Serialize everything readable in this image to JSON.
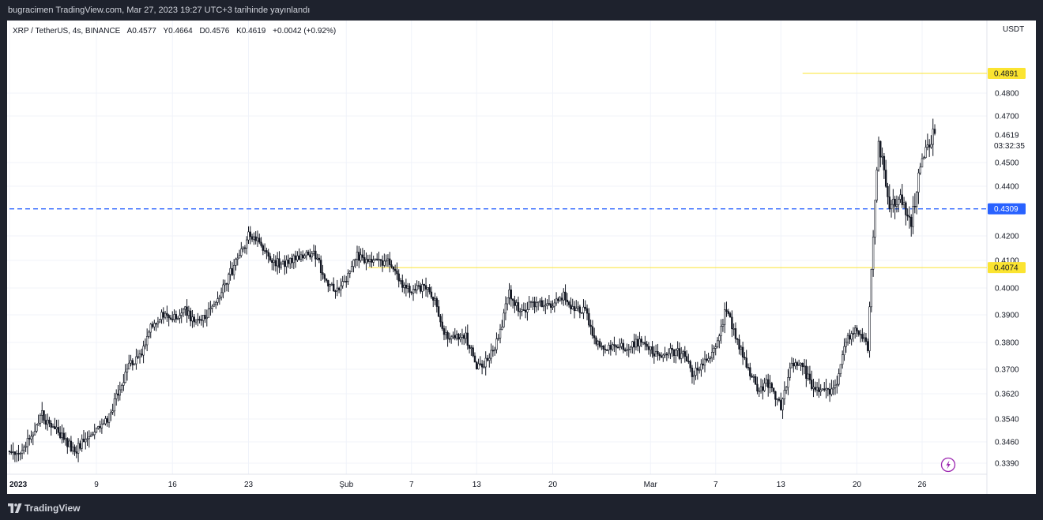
{
  "header": {
    "published_line": "bugracimen TradingView.com, Mar 27, 2023 19:27 UTC+3 tarihinde yayınlandı"
  },
  "legend": {
    "symbol_line": "XRP / TetherUS, 4s, BINANCE",
    "open": "A0.4577",
    "high": "Y0.4664",
    "low": "D0.4576",
    "close": "K0.4619",
    "change": "+0.0042 (+0.92%)"
  },
  "price_axis": {
    "currency": "USDT",
    "countdown": "03:32:35"
  },
  "footer": {
    "brand": "TradingView"
  },
  "chart_data": {
    "type": "candlestick",
    "symbol": "XRP / TetherUS",
    "timeframe": "4s",
    "exchange": "BINANCE",
    "last_price": "0.4619",
    "y_ticks": [
      0.339,
      0.346,
      0.354,
      0.362,
      0.37,
      0.38,
      0.39,
      0.4,
      0.41,
      0.42,
      0.44,
      0.45,
      0.47,
      0.48
    ],
    "y_tick_labels": [
      "0.3390",
      "0.3460",
      "0.3540",
      "0.3620",
      "0.3700",
      "0.3800",
      "0.3900",
      "0.4000",
      "0.4100",
      "0.4200",
      "0.4400",
      "0.4500",
      "0.4700",
      "0.4800"
    ],
    "x_ticks": [
      {
        "label": "2023",
        "date": "2023-01-01"
      },
      {
        "label": "9",
        "date": "2023-01-09"
      },
      {
        "label": "16",
        "date": "2023-01-16"
      },
      {
        "label": "23",
        "date": "2023-01-23"
      },
      {
        "label": "Şub",
        "date": "2023-02-01"
      },
      {
        "label": "7",
        "date": "2023-02-07"
      },
      {
        "label": "13",
        "date": "2023-02-13"
      },
      {
        "label": "20",
        "date": "2023-02-20"
      },
      {
        "label": "Mar",
        "date": "2023-03-01"
      },
      {
        "label": "7",
        "date": "2023-03-07"
      },
      {
        "label": "13",
        "date": "2023-03-13"
      },
      {
        "label": "20",
        "date": "2023-03-20"
      },
      {
        "label": "26",
        "date": "2023-03-26"
      }
    ],
    "horizontal_lines": [
      {
        "price": 0.4891,
        "label": "0.4891",
        "color": "#fbe431",
        "style": "solid",
        "from_date": "2023-03-15"
      },
      {
        "price": 0.4309,
        "label": "0.4309",
        "color": "#2962ff",
        "style": "dashed",
        "from_date": "2023-01-01"
      },
      {
        "price": 0.4074,
        "label": "0.4074",
        "color": "#fbe431",
        "style": "solid",
        "from_date": "2023-02-03"
      }
    ],
    "series_path": [
      [
        "2023-01-01",
        0.343
      ],
      [
        "2023-01-02",
        0.341
      ],
      [
        "2023-01-03",
        0.348
      ],
      [
        "2023-01-04",
        0.355
      ],
      [
        "2023-01-05",
        0.351
      ],
      [
        "2023-01-06",
        0.347
      ],
      [
        "2023-01-07",
        0.343
      ],
      [
        "2023-01-08",
        0.347
      ],
      [
        "2023-01-09",
        0.35
      ],
      [
        "2023-01-10",
        0.353
      ],
      [
        "2023-01-11",
        0.362
      ],
      [
        "2023-01-12",
        0.371
      ],
      [
        "2023-01-13",
        0.375
      ],
      [
        "2023-01-14",
        0.385
      ],
      [
        "2023-01-15",
        0.39
      ],
      [
        "2023-01-16",
        0.388
      ],
      [
        "2023-01-17",
        0.393
      ],
      [
        "2023-01-18",
        0.387
      ],
      [
        "2023-01-19",
        0.39
      ],
      [
        "2023-01-20",
        0.393
      ],
      [
        "2023-01-21",
        0.403
      ],
      [
        "2023-01-22",
        0.41
      ],
      [
        "2023-01-23",
        0.42
      ],
      [
        "2023-01-24",
        0.418
      ],
      [
        "2023-01-25",
        0.41
      ],
      [
        "2023-01-26",
        0.409
      ],
      [
        "2023-01-27",
        0.41
      ],
      [
        "2023-01-28",
        0.412
      ],
      [
        "2023-01-29",
        0.413
      ],
      [
        "2023-01-30",
        0.404
      ],
      [
        "2023-01-31",
        0.398
      ],
      [
        "2023-02-01",
        0.403
      ],
      [
        "2023-02-02",
        0.412
      ],
      [
        "2023-02-03",
        0.41
      ],
      [
        "2023-02-04",
        0.409
      ],
      [
        "2023-02-05",
        0.41
      ],
      [
        "2023-02-06",
        0.401
      ],
      [
        "2023-02-07",
        0.399
      ],
      [
        "2023-02-08",
        0.4
      ],
      [
        "2023-02-09",
        0.397
      ],
      [
        "2023-02-10",
        0.382
      ],
      [
        "2023-02-11",
        0.383
      ],
      [
        "2023-02-12",
        0.382
      ],
      [
        "2023-02-13",
        0.371
      ],
      [
        "2023-02-14",
        0.373
      ],
      [
        "2023-02-15",
        0.382
      ],
      [
        "2023-02-16",
        0.398
      ],
      [
        "2023-02-17",
        0.391
      ],
      [
        "2023-02-18",
        0.394
      ],
      [
        "2023-02-19",
        0.394
      ],
      [
        "2023-02-20",
        0.393
      ],
      [
        "2023-02-21",
        0.397
      ],
      [
        "2023-02-22",
        0.391
      ],
      [
        "2023-02-23",
        0.392
      ],
      [
        "2023-02-24",
        0.379
      ],
      [
        "2023-02-25",
        0.378
      ],
      [
        "2023-02-26",
        0.378
      ],
      [
        "2023-02-27",
        0.379
      ],
      [
        "2023-02-28",
        0.38
      ],
      [
        "2023-03-01",
        0.378
      ],
      [
        "2023-03-02",
        0.373
      ],
      [
        "2023-03-03",
        0.377
      ],
      [
        "2023-03-04",
        0.375
      ],
      [
        "2023-03-05",
        0.368
      ],
      [
        "2023-03-06",
        0.373
      ],
      [
        "2023-03-07",
        0.378
      ],
      [
        "2023-03-08",
        0.393
      ],
      [
        "2023-03-09",
        0.38
      ],
      [
        "2023-03-10",
        0.37
      ],
      [
        "2023-03-11",
        0.363
      ],
      [
        "2023-03-12",
        0.366
      ],
      [
        "2023-03-13",
        0.357
      ],
      [
        "2023-03-14",
        0.372
      ],
      [
        "2023-03-15",
        0.371
      ],
      [
        "2023-03-16",
        0.364
      ],
      [
        "2023-03-17",
        0.362
      ],
      [
        "2023-03-18",
        0.364
      ],
      [
        "2023-03-19",
        0.38
      ],
      [
        "2023-03-20",
        0.385
      ],
      [
        "2023-03-21",
        0.378
      ],
      [
        "2023-03-22",
        0.46
      ],
      [
        "2023-03-23",
        0.43
      ],
      [
        "2023-03-24",
        0.437
      ],
      [
        "2023-03-25",
        0.425
      ],
      [
        "2023-03-26",
        0.452
      ],
      [
        "2023-03-27",
        0.4619
      ]
    ]
  }
}
